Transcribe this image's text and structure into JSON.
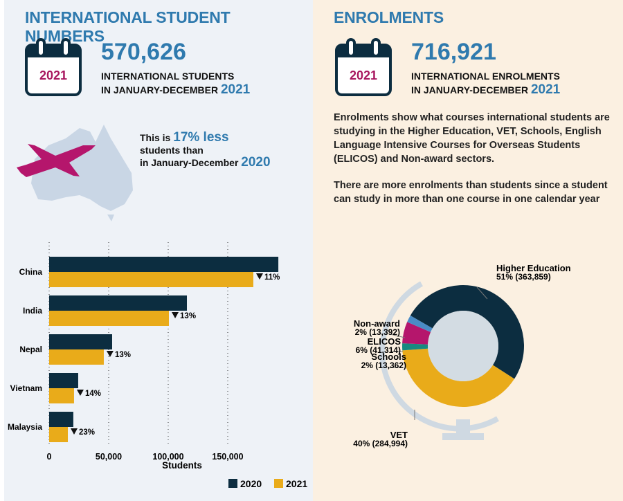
{
  "left": {
    "title": "INTERNATIONAL STUDENT NUMBERS",
    "calendar_year": "2021",
    "total": "570,626",
    "line1": "INTERNATIONAL STUDENTS",
    "line2": "IN JANUARY-DECEMBER",
    "line2_year": "2021",
    "compare_prefix": "This is",
    "compare_value": "17% less",
    "compare_line2": "students than",
    "compare_line3": "in January-December",
    "compare_year": "2020"
  },
  "right": {
    "title": "ENROLMENTS",
    "calendar_year": "2021",
    "total": "716,921",
    "line1": "INTERNATIONAL ENROLMENTS",
    "line2": "IN JANUARY-DECEMBER",
    "line2_year": "2021",
    "para1": "Enrolments show what courses international students are studying in the Higher Education, VET, Schools, English Language Intensive Courses for Overseas Students (ELICOS) and Non-award sectors.",
    "para2": "There are more enrolments than students since a student can study in more than one course in one calendar year"
  },
  "colors": {
    "navy": "#0c2d40",
    "gold": "#e9ab1a",
    "magenta": "#b5166c",
    "blue": "#2f7aae",
    "teal": "#178a80",
    "lightblue": "#4a8cc6"
  },
  "chart_data": [
    {
      "type": "bar",
      "orientation": "horizontal",
      "categories": [
        "China",
        "India",
        "Nepal",
        "Vietnam",
        "Malaysia"
      ],
      "series": [
        {
          "name": "2020",
          "values": [
            192500,
            115700,
            52900,
            24400,
            20300
          ]
        },
        {
          "name": "2021",
          "values": [
            171500,
            100600,
            45900,
            20900,
            15700
          ]
        }
      ],
      "change_labels": [
        "11%",
        "13%",
        "13%",
        "14%",
        "23%"
      ],
      "xlabel": "Students",
      "xticks": [
        0,
        50000,
        100000,
        150000
      ],
      "xtick_labels": [
        "0",
        "50,000",
        "100,000",
        "150,000"
      ],
      "xlim": [
        0,
        200000
      ],
      "legend": [
        "2020",
        "2021"
      ],
      "legend_position": "bottom-right",
      "grid": "vertical dotted"
    },
    {
      "type": "pie",
      "donut": true,
      "slices": [
        {
          "label": "Higher Education",
          "pct_label": "51% (363,859)",
          "value": 363859
        },
        {
          "label": "VET",
          "pct_label": "40% (284,994)",
          "value": 284994
        },
        {
          "label": "Schools",
          "pct_label": "2% (13,362)",
          "value": 13362
        },
        {
          "label": "ELICOS",
          "pct_label": "6% (41,314)",
          "value": 41314
        },
        {
          "label": "Non-award",
          "pct_label": "2% (13,392)",
          "value": 13392
        }
      ]
    }
  ]
}
